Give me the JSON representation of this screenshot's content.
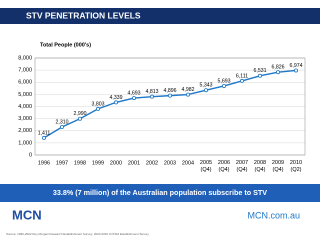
{
  "header": {
    "title": "STV PENETRATION LEVELS"
  },
  "chart_data": {
    "type": "line",
    "y_label": "Total People (000's)",
    "categories": [
      "1996",
      "1997",
      "1998",
      "1999",
      "2000",
      "2001",
      "2002",
      "2003",
      "2004",
      "2005 (Q4)",
      "2006 (Q4)",
      "2007 (Q4)",
      "2008 (Q4)",
      "2009 (Q4)",
      "2010 (Q2)"
    ],
    "values": [
      1411,
      2310,
      2990,
      3803,
      4339,
      4693,
      4813,
      4896,
      4982,
      5343,
      5693,
      6111,
      6531,
      6826,
      6974
    ],
    "value_labels": [
      "1,411",
      "2,310",
      "2,990",
      "3,803",
      "4,339",
      "4,693",
      "4,813",
      "4,896",
      "4,982",
      "5,343",
      "5,693",
      "6,111",
      "6,531",
      "6,826",
      "6,974"
    ],
    "color": "#1f78c8",
    "ylim": [
      0,
      8000
    ],
    "yticks": [
      0,
      {
        "value": 1000,
        "label": "1,000"
      },
      {
        "value": 2000,
        "label": "2,000"
      },
      {
        "value": 3000,
        "label": "3,000"
      },
      {
        "value": 4000,
        "label": "4,000"
      },
      {
        "value": 5000,
        "label": "5,000"
      },
      {
        "value": 6000,
        "label": "6,000"
      },
      {
        "value": 7000,
        "label": "7,000"
      },
      {
        "value": 8000,
        "label": "8,000"
      }
    ],
    "grid": true
  },
  "banner": "33.8% (7 million) of the Australian population subscribe to STV",
  "logos": [
    "MCN",
    "MCN.com.au"
  ],
  "footer": "Source: 1996-2002 Roy Morgan Research Establishment Survey; 2003-2010 OzTAM Establishment Survey"
}
